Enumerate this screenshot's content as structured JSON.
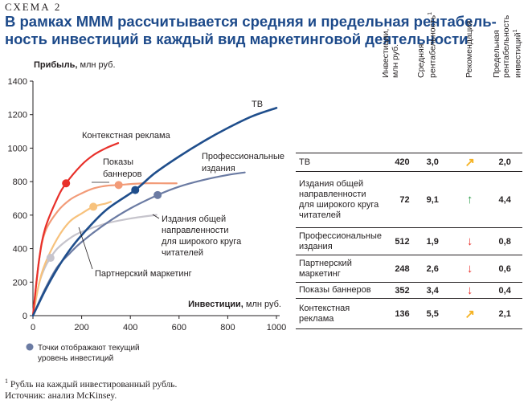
{
  "header": {
    "scheme_label": "СХЕМА 2",
    "title_line1": "В рамках МММ рассчитывается средняя и предельная рентабель-",
    "title_line2": "ность инвестиций в каждый вид маркетинговой деятельности"
  },
  "chart_data": {
    "type": "line",
    "ylabel_bold": "Прибыль,",
    "ylabel_rest": " млн руб.",
    "xlabel_bold": "Инвестиции,",
    "xlabel_rest": " млн руб.",
    "xlim": [
      0,
      1000
    ],
    "ylim": [
      0,
      1400
    ],
    "xticks": [
      0,
      200,
      400,
      600,
      800,
      1000
    ],
    "yticks": [
      0,
      200,
      400,
      600,
      800,
      1000,
      1200,
      1400
    ],
    "grid": false,
    "series": [
      {
        "name": "ТВ",
        "color": "#1f4e8c",
        "x": [
          0,
          50,
          100,
          150,
          200,
          300,
          420,
          500,
          600,
          700,
          800,
          900,
          1000
        ],
        "y": [
          0,
          150,
          280,
          390,
          480,
          630,
          750,
          850,
          950,
          1040,
          1120,
          1190,
          1240
        ],
        "current": [
          420,
          750
        ]
      },
      {
        "name": "Профессиональные издания",
        "color": "#6b7ba3",
        "x": [
          0,
          50,
          100,
          150,
          200,
          300,
          400,
          512,
          600,
          700,
          800,
          870
        ],
        "y": [
          0,
          160,
          290,
          370,
          440,
          550,
          640,
          720,
          770,
          810,
          840,
          855
        ],
        "current": [
          512,
          720
        ]
      },
      {
        "name": "Издания общей направленности для широкого круга читателей",
        "color": "#c6c4cc",
        "x": [
          0,
          25,
          50,
          72,
          100,
          150,
          200,
          300,
          400,
          500,
          500
        ],
        "y": [
          0,
          190,
          290,
          345,
          400,
          460,
          500,
          550,
          580,
          600,
          600
        ],
        "current": [
          72,
          345
        ]
      },
      {
        "name": "Партнерский маркетинг",
        "color": "#f7c27d",
        "x": [
          0,
          25,
          50,
          100,
          150,
          200,
          248,
          300,
          320
        ],
        "y": [
          0,
          190,
          310,
          460,
          560,
          610,
          650,
          670,
          680
        ],
        "current": [
          248,
          650
        ]
      },
      {
        "name": "Показы баннеров",
        "color": "#f29b78",
        "x": [
          0,
          25,
          50,
          100,
          150,
          200,
          250,
          300,
          352,
          450,
          550,
          590
        ],
        "y": [
          0,
          330,
          500,
          620,
          690,
          730,
          760,
          775,
          780,
          790,
          790,
          790
        ],
        "current": [
          352,
          780
        ]
      },
      {
        "name": "Контекстная реклама",
        "color": "#e8302a",
        "x": [
          0,
          25,
          50,
          100,
          136,
          200,
          250,
          300,
          350
        ],
        "y": [
          0,
          330,
          520,
          700,
          790,
          900,
          960,
          1000,
          1030
        ],
        "current": [
          136,
          790
        ]
      }
    ],
    "legend_note": "Точки отображают текущий уровень инвестиций",
    "legend_dot_color": "#6b7ba3"
  },
  "annotations": {
    "tv": "ТВ",
    "context_ad": "Контекстная реклама",
    "banners_1": "Показы",
    "banners_2": "баннеров",
    "prof_1": "Профессиональные",
    "prof_2": "издания",
    "general_1": "Издания общей",
    "general_2": "направленности",
    "general_3": "для широкого круга",
    "general_4": "читателей",
    "partner": "Партнерский маркетинг"
  },
  "table": {
    "headers": {
      "invest_1": "Инвестиции,",
      "invest_2": "млн руб.",
      "avg_1": "Средняя",
      "avg_2": "рентабельность",
      "rec": "Рекомендация",
      "lim_1": "Предельная",
      "lim_2": "рентабельность",
      "lim_3": "инвестиций",
      "footnote_mark": "1"
    },
    "rows": [
      {
        "label": "ТВ",
        "invest": "420",
        "avg": "3,0",
        "arrow": "↗",
        "arrow_color": "#f5b324",
        "limit": "2,0"
      },
      {
        "label": "Издания общей направленности для широкого круга читателей",
        "invest": "72",
        "avg": "9,1",
        "arrow": "↑",
        "arrow_color": "#2e9e4a",
        "limit": "4,4"
      },
      {
        "label": "Профессиональные издания",
        "invest": "512",
        "avg": "1,9",
        "arrow": "↓",
        "arrow_color": "#e8302a",
        "limit": "0,8"
      },
      {
        "label": "Партнерский маркетинг",
        "invest": "248",
        "avg": "2,6",
        "arrow": "↓",
        "arrow_color": "#e8302a",
        "limit": "0,6"
      },
      {
        "label": "Показы баннеров",
        "invest": "352",
        "avg": "3,4",
        "arrow": "↓",
        "arrow_color": "#e8302a",
        "limit": "0,4"
      },
      {
        "label": "Контекстная реклама",
        "invest": "136",
        "avg": "5,5",
        "arrow": "↗",
        "arrow_color": "#f5b324",
        "limit": "2,1"
      }
    ]
  },
  "footer": {
    "footnote_mark": "1",
    "footnote_text": " Рубль на каждый инвестированный рубль.",
    "source": "Источник: анализ McKinsey."
  }
}
